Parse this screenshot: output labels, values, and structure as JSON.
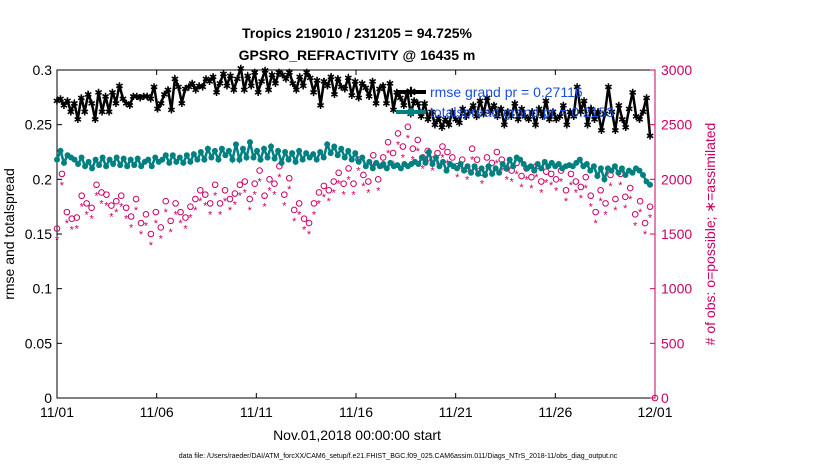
{
  "chart_data": {
    "type": "line",
    "title_line1": "Tropics 219010 / 231205 = 94.725%",
    "title_line2": "GPSRO_REFRACTIVITY @ 16435 m",
    "xlabel": "Nov.01,2018 00:00:00 start",
    "ylabel_left": "rmse and totalspread",
    "ylabel_right": "# of obs: o=possible; ∗=assimilated",
    "footer": "data file: /Users/raeder/DAI/ATM_forcXX/CAM6_setup/f.e21.FHIST_BGC.f09_025.CAM6assim.011/Diags_NTrS_2018-11/obs_diag_output.nc",
    "x_tick_labels": [
      "11/01",
      "11/06",
      "11/11",
      "11/16",
      "11/21",
      "11/26",
      "12/01"
    ],
    "x_tick_days": [
      0,
      5,
      10,
      15,
      20,
      25,
      30
    ],
    "xlim_days": [
      0,
      30
    ],
    "ylim_left": [
      0,
      0.3
    ],
    "yticks_left": [
      "0",
      "0.05",
      "0.1",
      "0.15",
      "0.2",
      "0.25",
      "0.3"
    ],
    "ylim_right": [
      0,
      3000
    ],
    "yticks_right": [
      "0",
      "500",
      "1000",
      "1500",
      "2000",
      "2500",
      "3000"
    ],
    "legend_position": "top-right",
    "grid": false,
    "colors": {
      "rmse": "#000000",
      "spread": "#008080",
      "obs": "#cc0066"
    },
    "series": [
      {
        "name": "rmse grand pr = 0.27116",
        "axis": "left",
        "marker": "star",
        "values": [
          0.272,
          0.274,
          0.268,
          0.272,
          0.262,
          0.27,
          0.255,
          0.275,
          0.262,
          0.278,
          0.27,
          0.255,
          0.28,
          0.262,
          0.276,
          0.262,
          0.28,
          0.27,
          0.286,
          0.274,
          0.27,
          0.268,
          0.276,
          0.276,
          0.275,
          0.276,
          0.276,
          0.274,
          0.285,
          0.265,
          0.27,
          0.278,
          0.282,
          0.264,
          0.292,
          0.285,
          0.27,
          0.283,
          0.285,
          0.288,
          0.282,
          0.286,
          0.285,
          0.292,
          0.29,
          0.294,
          0.28,
          0.288,
          0.297,
          0.286,
          0.295,
          0.282,
          0.292,
          0.302,
          0.282,
          0.295,
          0.286,
          0.298,
          0.28,
          0.29,
          0.3,
          0.282,
          0.296,
          0.288,
          0.298,
          0.296,
          0.292,
          0.298,
          0.288,
          0.282,
          0.294,
          0.286,
          0.298,
          0.293,
          0.28,
          0.291,
          0.268,
          0.29,
          0.286,
          0.294,
          0.278,
          0.292,
          0.285,
          0.283,
          0.293,
          0.277,
          0.29,
          0.275,
          0.288,
          0.284,
          0.276,
          0.29,
          0.27,
          0.283,
          0.286,
          0.27,
          0.288,
          0.264,
          0.28,
          0.275,
          0.268,
          0.28,
          0.26,
          0.272,
          0.27,
          0.258,
          0.27,
          0.255,
          0.262,
          0.25,
          0.256,
          0.248,
          0.255,
          0.25,
          0.262,
          0.255,
          0.252,
          0.265,
          0.258,
          0.262,
          0.268,
          0.258,
          0.272,
          0.26,
          0.275,
          0.262,
          0.268,
          0.258,
          0.265,
          0.25,
          0.262,
          0.258,
          0.27,
          0.255,
          0.265,
          0.258,
          0.255,
          0.262,
          0.25,
          0.265,
          0.258,
          0.272,
          0.255,
          0.262,
          0.255,
          0.258,
          0.268,
          0.25,
          0.262,
          0.258,
          0.285,
          0.262,
          0.272,
          0.25,
          0.265,
          0.255,
          0.262,
          0.245,
          0.26,
          0.285,
          0.262,
          0.245,
          0.268,
          0.255,
          0.248,
          0.265,
          0.28,
          0.258,
          0.255,
          0.262,
          0.275,
          0.24
        ],
        "days_start": 0,
        "days_end": 29.75
      },
      {
        "name": "totalspread grand pr = 0.2153",
        "axis": "left",
        "marker": "circle-filled",
        "values": [
          0.218,
          0.226,
          0.215,
          0.222,
          0.22,
          0.218,
          0.214,
          0.22,
          0.212,
          0.216,
          0.21,
          0.218,
          0.213,
          0.22,
          0.212,
          0.218,
          0.214,
          0.22,
          0.213,
          0.219,
          0.212,
          0.218,
          0.213,
          0.219,
          0.212,
          0.216,
          0.218,
          0.212,
          0.22,
          0.216,
          0.218,
          0.222,
          0.215,
          0.222,
          0.216,
          0.22,
          0.215,
          0.222,
          0.216,
          0.223,
          0.218,
          0.225,
          0.218,
          0.228,
          0.22,
          0.226,
          0.218,
          0.228,
          0.222,
          0.226,
          0.218,
          0.232,
          0.218,
          0.228,
          0.22,
          0.234,
          0.22,
          0.226,
          0.218,
          0.228,
          0.22,
          0.23,
          0.219,
          0.226,
          0.215,
          0.225,
          0.218,
          0.224,
          0.216,
          0.226,
          0.218,
          0.224,
          0.22,
          0.223,
          0.218,
          0.225,
          0.22,
          0.232,
          0.224,
          0.23,
          0.222,
          0.228,
          0.22,
          0.226,
          0.218,
          0.224,
          0.216,
          0.22,
          0.212,
          0.216,
          0.21,
          0.215,
          0.212,
          0.214,
          0.21,
          0.215,
          0.212,
          0.213,
          0.21,
          0.214,
          0.212,
          0.214,
          0.216,
          0.214,
          0.22,
          0.215,
          0.225,
          0.214,
          0.22,
          0.212,
          0.216,
          0.208,
          0.214,
          0.212,
          0.21,
          0.214,
          0.208,
          0.212,
          0.206,
          0.212,
          0.205,
          0.21,
          0.204,
          0.212,
          0.205,
          0.21,
          0.206,
          0.214,
          0.21,
          0.218,
          0.212,
          0.22,
          0.218,
          0.214,
          0.21,
          0.212,
          0.208,
          0.214,
          0.21,
          0.216,
          0.212,
          0.215,
          0.212,
          0.214,
          0.21,
          0.212,
          0.213,
          0.212,
          0.215,
          0.218,
          0.212,
          0.214,
          0.208,
          0.212,
          0.203,
          0.21,
          0.2,
          0.21,
          0.208,
          0.212,
          0.206,
          0.21,
          0.204,
          0.208,
          0.206,
          0.21,
          0.208,
          0.204,
          0.198,
          0.195
        ],
        "days_start": 0,
        "days_end": 29.75
      },
      {
        "name": "obs possible",
        "axis": "right",
        "marker": "circle-open",
        "values": [
          1550,
          2050,
          1700,
          1640,
          1650,
          1850,
          1780,
          1740,
          1950,
          1880,
          1860,
          1760,
          1800,
          1850,
          1740,
          1660,
          1820,
          1600,
          1680,
          1500,
          1700,
          1560,
          1800,
          1620,
          1780,
          1700,
          1650,
          1750,
          1820,
          1900,
          1860,
          1780,
          1950,
          1780,
          1900,
          1820,
          1870,
          1950,
          1980,
          1820,
          1960,
          2080,
          1850,
          2000,
          1960,
          2120,
          1860,
          2010,
          1720,
          1780,
          1640,
          1600,
          1780,
          1880,
          1940,
          1900,
          1980,
          2060,
          1960,
          2100,
          1960,
          2180,
          2040,
          1980,
          2220,
          2000,
          2200,
          2340,
          2240,
          2420,
          2300,
          2480,
          2280,
          2360,
          2200,
          2260,
          2180,
          2240,
          2300,
          2250,
          2200,
          2120,
          2180,
          2100,
          2280,
          2180,
          2060,
          2200,
          2150,
          2250,
          2180,
          2100,
          2080,
          2150,
          2030,
          2100,
          2020,
          2120,
          1980,
          2070,
          2050,
          2000,
          2080,
          1900,
          2050,
          1980,
          1930,
          2020,
          1850,
          1700,
          1900,
          1780,
          2040,
          1820,
          2050,
          1840,
          1920,
          1680,
          1800,
          1600,
          1750
        ],
        "days_start": 0,
        "days_end": 29.75
      },
      {
        "name": "obs assimilated",
        "axis": "right",
        "marker": "asterisk",
        "values": [
          1450,
          1950,
          1600,
          1540,
          1550,
          1750,
          1680,
          1640,
          1850,
          1780,
          1760,
          1660,
          1700,
          1750,
          1640,
          1560,
          1720,
          1500,
          1580,
          1400,
          1600,
          1460,
          1700,
          1520,
          1680,
          1600,
          1550,
          1650,
          1720,
          1800,
          1760,
          1680,
          1850,
          1680,
          1800,
          1720,
          1770,
          1850,
          1880,
          1720,
          1860,
          1980,
          1750,
          1900,
          1860,
          2020,
          1760,
          1910,
          1620,
          1680,
          1540,
          1500,
          1680,
          1780,
          1840,
          1800,
          1880,
          1960,
          1860,
          2000,
          1860,
          2080,
          1940,
          1880,
          2120,
          1900,
          2100,
          2240,
          2140,
          2320,
          2200,
          2380,
          2180,
          2260,
          2100,
          2160,
          2080,
          2140,
          2200,
          2150,
          2100,
          2020,
          2080,
          2000,
          2180,
          2080,
          1960,
          2100,
          2050,
          2150,
          2080,
          2000,
          1980,
          2050,
          1930,
          2000,
          1920,
          2020,
          1880,
          1970,
          1950,
          1900,
          1980,
          1800,
          1950,
          1880,
          1830,
          1920,
          1750,
          1600,
          1800,
          1680,
          1940,
          1720,
          1950,
          1740,
          1820,
          1580,
          1700,
          1500,
          1650
        ],
        "days_start": 0,
        "days_end": 29.75
      }
    ]
  }
}
